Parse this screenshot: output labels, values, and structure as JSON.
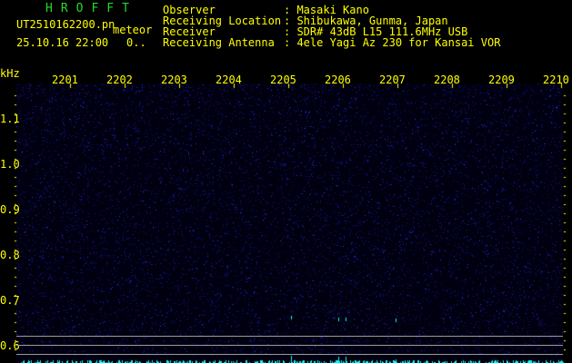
{
  "header": {
    "brand": "HROFFT",
    "filename": "UT2510162200.pn",
    "mode": "meteor",
    "datetime": "25.10.16 22:00",
    "count": "0..",
    "fields": [
      {
        "label": "Observer",
        "value": ": Masaki Kano"
      },
      {
        "label": "Receiving Location",
        "value": ": Shibukawa, Gunma, Japan"
      },
      {
        "label": "Receiver",
        "value": ": SDR# 43dB L15 111.6MHz USB"
      },
      {
        "label": "Receiving Antenna",
        "value": ": 4ele Yagi Az 230 for Kansai VOR"
      }
    ]
  },
  "axis": {
    "y_unit": "kHz",
    "x_labels": [
      "2201",
      "2202",
      "2203",
      "2204",
      "2205",
      "2206",
      "2207",
      "2208",
      "2209",
      "2210"
    ],
    "y_labels": [
      "1.1",
      "1.0",
      "0.9",
      "0.8",
      "0.7",
      "0.6"
    ]
  },
  "colors": {
    "text": "#ffff00",
    "brand": "#22dd22",
    "noise": "#1a1aff",
    "echo": "#00ffff"
  }
}
